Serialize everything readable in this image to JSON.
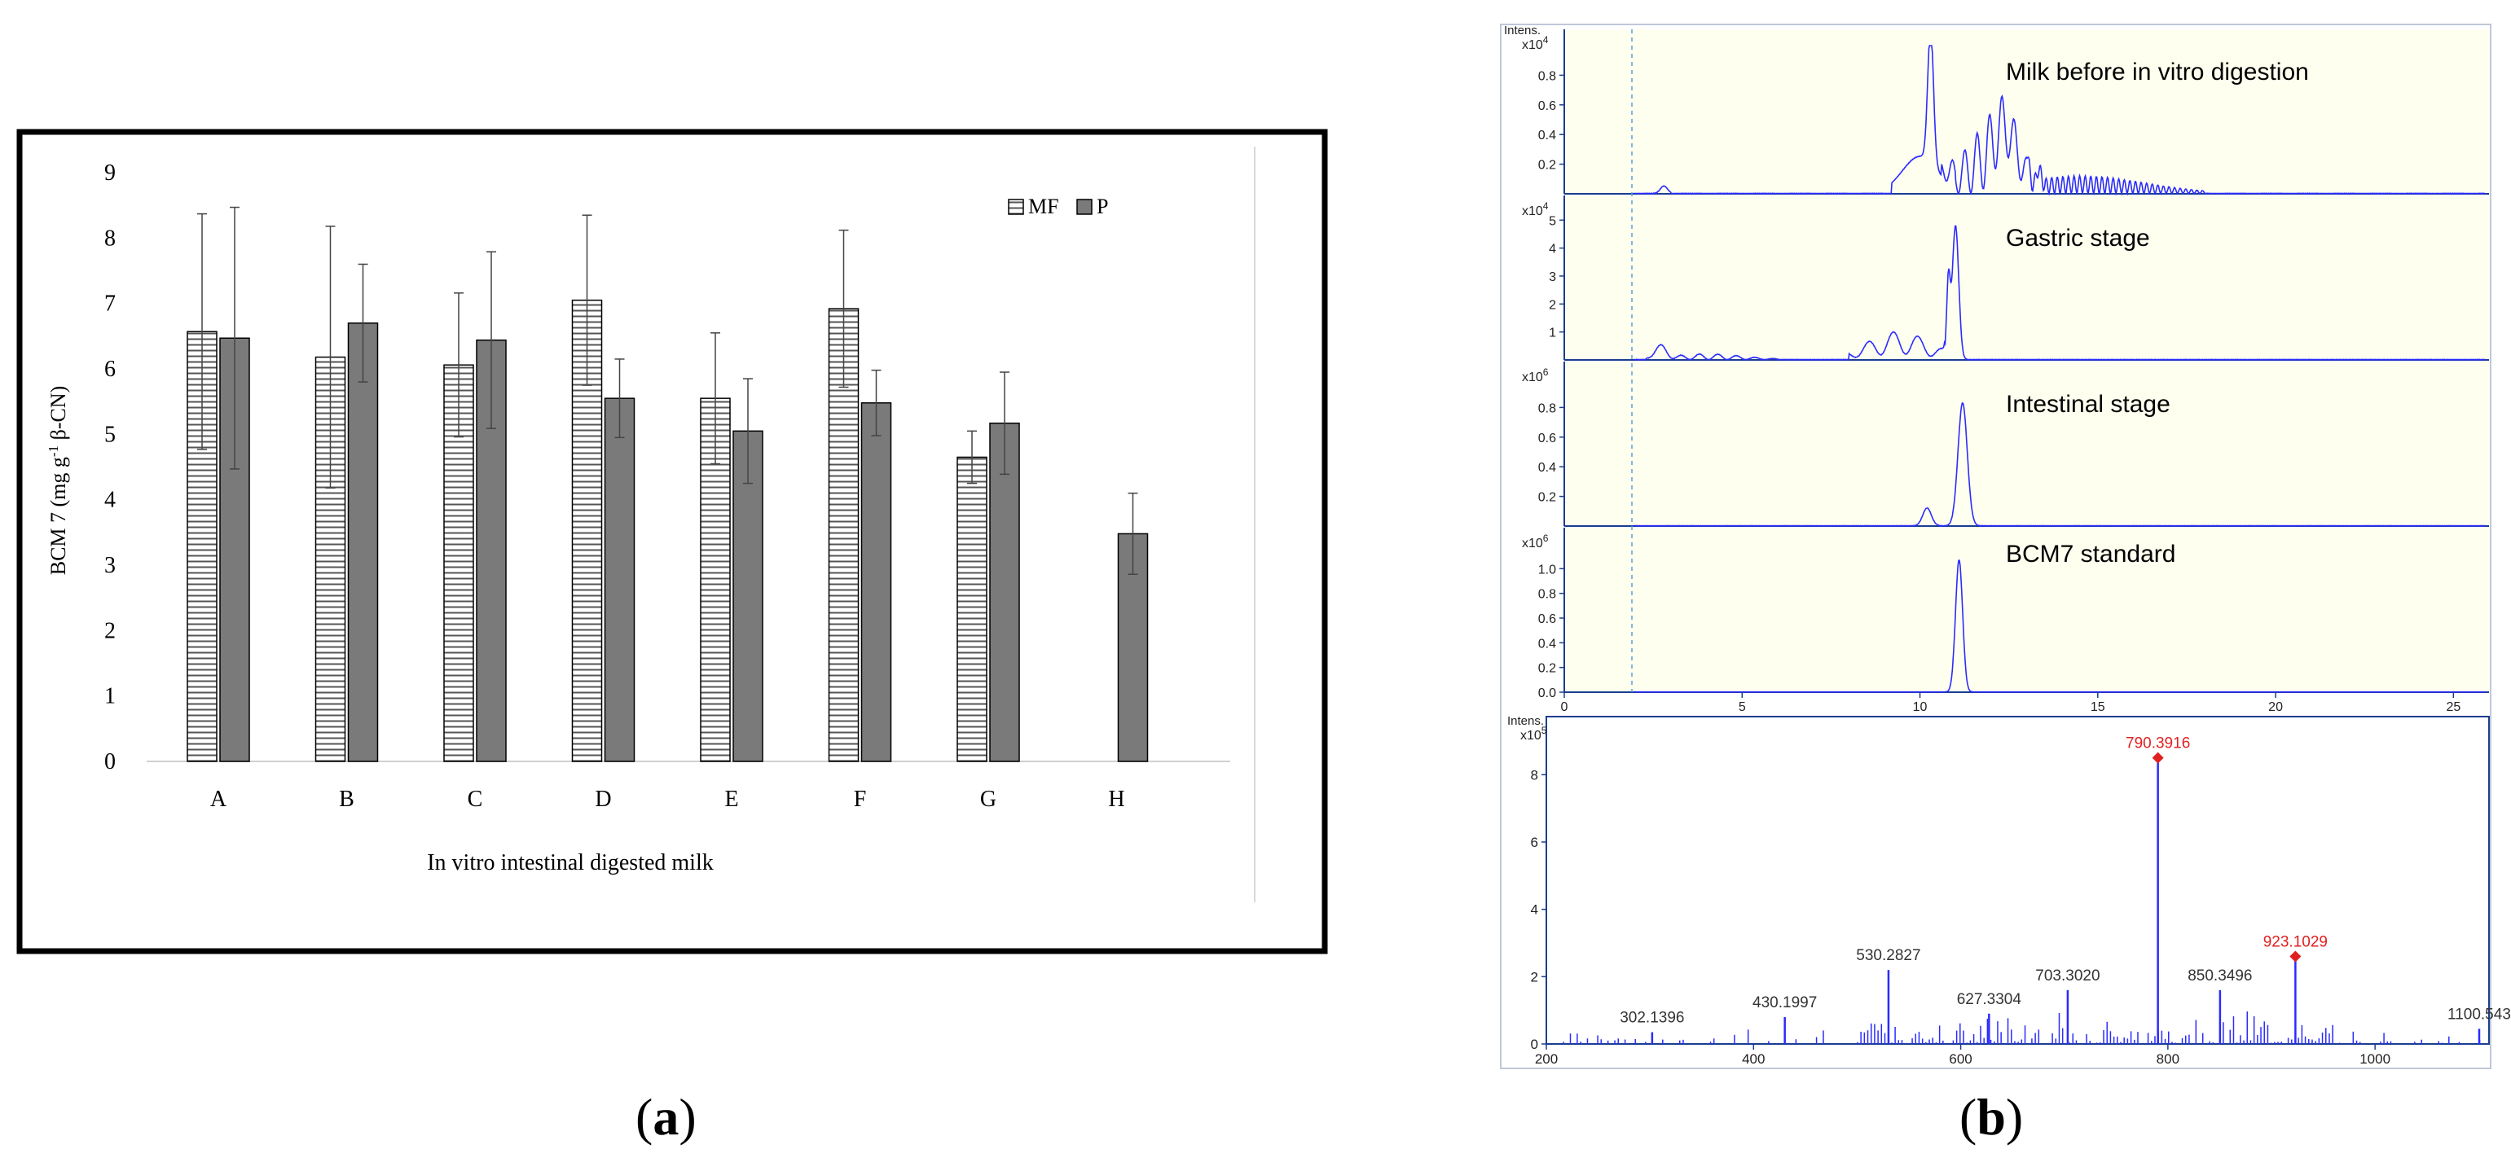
{
  "panel_labels": {
    "a": "a",
    "b": "b"
  },
  "chart_data": [
    {
      "type": "bar",
      "ylabel": "BCM 7 (mg g-1 β-CN)",
      "ylabel_parts": {
        "pre": "BCM 7 (mg g",
        "sup": "-1",
        "post": " β-CN)"
      },
      "xlabel": "In vitro intestinal digested milk",
      "ylim": [
        0,
        9
      ],
      "yticks": [
        "0",
        "1",
        "2",
        "3",
        "4",
        "5",
        "6",
        "7",
        "8",
        "9"
      ],
      "categories": [
        "A",
        "B",
        "C",
        "D",
        "E",
        "F",
        "G",
        "H"
      ],
      "legend_position": "top-right",
      "series": [
        {
          "name": "MF",
          "values": [
            6.57,
            6.18,
            6.06,
            7.05,
            5.55,
            6.92,
            4.65,
            null
          ],
          "errors": [
            1.8,
            2.0,
            1.1,
            1.3,
            1.0,
            1.2,
            0.4,
            null
          ]
        },
        {
          "name": "P",
          "values": [
            6.47,
            6.7,
            6.44,
            5.55,
            5.05,
            5.48,
            5.17,
            3.48
          ],
          "errors": [
            2.0,
            0.9,
            1.35,
            0.6,
            0.8,
            0.5,
            0.78,
            0.62
          ]
        }
      ],
      "colors": {
        "MF_fill": "#ffffff",
        "MF_hatch": "#555555",
        "P_fill": "#7a7a7a",
        "frame": "#000000"
      }
    },
    {
      "type": "line",
      "xlim": [
        0,
        26
      ],
      "xticks": [
        "0",
        "5",
        "10",
        "15",
        "20",
        "25"
      ],
      "intens_label": "Intens.",
      "traces": [
        {
          "name": "Milk before in vitro digestion",
          "scale": "x10",
          "scale_exp": "4",
          "yticks": [
            "0.2",
            "0.4",
            "0.6",
            "0.8"
          ],
          "ylim": [
            0,
            1.0
          ]
        },
        {
          "name": "Gastric stage",
          "scale": "x10",
          "scale_exp": "4",
          "yticks": [
            "1",
            "2",
            "3",
            "4",
            "5"
          ],
          "ylim": [
            0,
            5.3
          ]
        },
        {
          "name": "Intestinal stage",
          "scale": "x10",
          "scale_exp": "6",
          "yticks": [
            "0.2",
            "0.4",
            "0.6",
            "0.8"
          ],
          "ylim": [
            0,
            1.0
          ]
        },
        {
          "name": "BCM7 standard",
          "scale": "x10",
          "scale_exp": "6",
          "yticks": [
            "0.0",
            "0.2",
            "0.4",
            "0.6",
            "0.8",
            "1.0"
          ],
          "ylim": [
            0,
            1.2
          ]
        }
      ],
      "colors": {
        "trace": "#2b2bff",
        "bg": "#fffff0",
        "axis": "#1a3d8f"
      }
    },
    {
      "type": "bar",
      "subtype": "mass-spectrum",
      "intens_label": "Intens.",
      "scale": "x10",
      "scale_exp": "5",
      "xlim": [
        200,
        1110
      ],
      "xticks": [
        "200",
        "400",
        "600",
        "800",
        "1000"
      ],
      "ylim": [
        0,
        9
      ],
      "yticks": [
        "0",
        "2",
        "4",
        "6",
        "8"
      ],
      "labeled_peaks": [
        {
          "mz": 302.1396,
          "label": "302.1396",
          "intensity": 0.35,
          "highlight": false
        },
        {
          "mz": 430.1997,
          "label": "430.1997",
          "intensity": 0.8,
          "highlight": false
        },
        {
          "mz": 530.2827,
          "label": "530.2827",
          "intensity": 2.2,
          "highlight": false
        },
        {
          "mz": 627.3304,
          "label": "627.3304",
          "intensity": 0.9,
          "highlight": false
        },
        {
          "mz": 703.302,
          "label": "703.3020",
          "intensity": 1.6,
          "highlight": false
        },
        {
          "mz": 790.3916,
          "label": "790.3916",
          "intensity": 8.5,
          "highlight": true
        },
        {
          "mz": 850.3496,
          "label": "850.3496",
          "intensity": 1.6,
          "highlight": false
        },
        {
          "mz": 923.1029,
          "label": "923.1029",
          "intensity": 2.6,
          "highlight": true
        },
        {
          "mz": 1100.543,
          "label": "1100.543",
          "intensity": 0.45,
          "highlight": false
        }
      ],
      "colors": {
        "peaks": "#2b2bff",
        "highlight": "#e02020"
      }
    }
  ]
}
